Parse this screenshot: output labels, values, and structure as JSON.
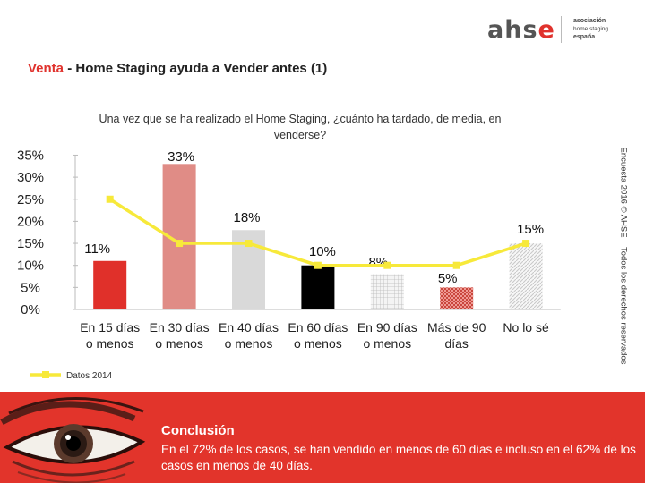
{
  "logo": {
    "mark_main": "ahs",
    "mark_accent": "e",
    "lines": [
      "asociación",
      "home staging",
      "españa"
    ]
  },
  "header": {
    "title_accent": "Venta",
    "title_rest": " - Home Staging ayuda a Vender antes (1)"
  },
  "side_note": "Encuesta 2016 © AHSE – Todos los derechos reservados",
  "conclusion": {
    "heading": "Conclusión",
    "text": "En el 72% de los casos, se han vendido en menos de 60 días e incluso en el 62% de los casos en menos de 40 días."
  },
  "colors": {
    "brand_red": "#e2342b",
    "line_yellow": "#f7e93a"
  },
  "chart_data": {
    "type": "bar",
    "title": "Una vez que se ha realizado el Home Staging, ¿cuánto ha tardado, de media, en venderse?",
    "categories": [
      [
        "En 15 días",
        "o menos"
      ],
      [
        "En 30 días",
        "o menos"
      ],
      [
        "En 40 días",
        "o menos"
      ],
      [
        "En 60 días",
        "o menos"
      ],
      [
        "En 90 días",
        "o menos"
      ],
      [
        "Más de 90",
        "días"
      ],
      [
        "No lo sé"
      ]
    ],
    "values": [
      11,
      33,
      18,
      10,
      8,
      5,
      15
    ],
    "value_labels": [
      "11%",
      "33%",
      "18%",
      "10%",
      "8%",
      "5%",
      "15%"
    ],
    "bar_colors": [
      "#e0302a",
      "#e08c86",
      "#d9d9d9",
      "#000000",
      "#e8e8e8",
      "#c9463d",
      "#e9e9e9"
    ],
    "bar_patterns": [
      "solid",
      "solid",
      "solid",
      "solid",
      "grid",
      "checker",
      "diagonal"
    ],
    "series_line": {
      "name": "Datos 2014",
      "values": [
        25,
        15,
        15,
        10,
        10,
        10,
        15
      ]
    },
    "y_ticks": [
      "0%",
      "5%",
      "10%",
      "15%",
      "20%",
      "25%",
      "30%",
      "35%"
    ],
    "ylim": [
      0,
      35
    ],
    "grid": false,
    "legend": "bottom-left"
  }
}
